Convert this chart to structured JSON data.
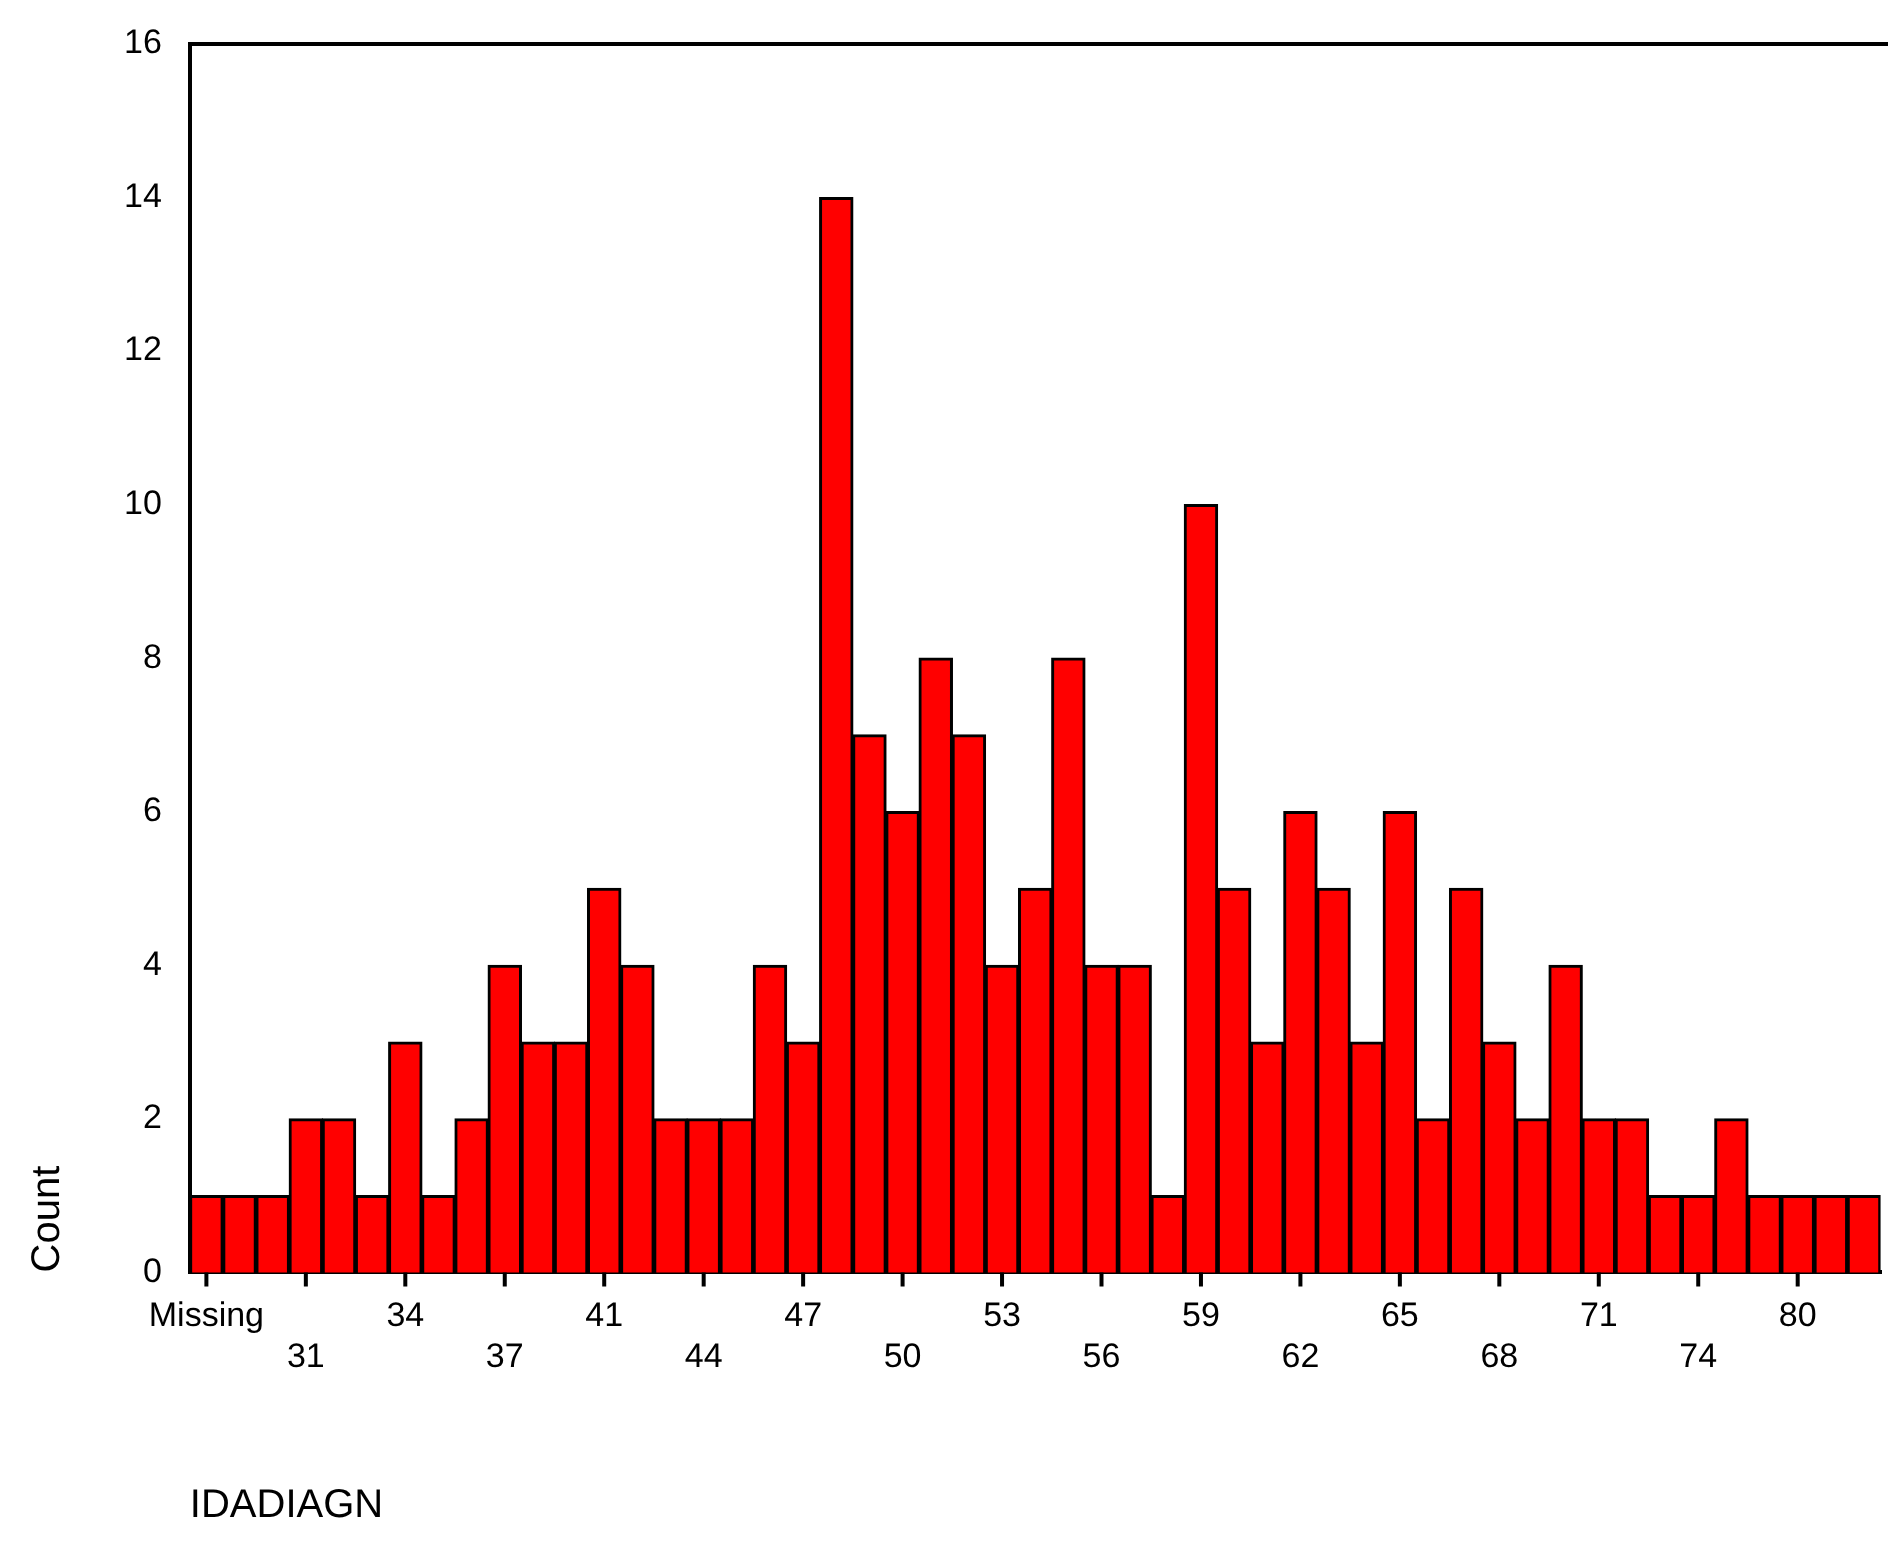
{
  "chart_data": {
    "type": "bar",
    "xlabel": "IDADIAGN",
    "ylabel": "Count",
    "categories": [
      "Missing",
      null,
      null,
      "31",
      null,
      null,
      "34",
      null,
      null,
      "37",
      null,
      null,
      "41",
      null,
      null,
      "44",
      null,
      null,
      "47",
      null,
      null,
      "50",
      null,
      null,
      "53",
      null,
      null,
      "56",
      null,
      null,
      "59",
      null,
      null,
      "62",
      null,
      null,
      "65",
      null,
      null,
      "68",
      null,
      null,
      "71",
      null,
      null,
      "74",
      null,
      null,
      "80",
      null,
      null
    ],
    "values": [
      1,
      1,
      1,
      2,
      2,
      1,
      3,
      1,
      2,
      4,
      3,
      3,
      5,
      4,
      2,
      2,
      2,
      4,
      3,
      14,
      7,
      6,
      8,
      7,
      4,
      5,
      8,
      4,
      4,
      1,
      10,
      5,
      3,
      6,
      5,
      3,
      6,
      2,
      5,
      3,
      2,
      4,
      2,
      2,
      1,
      1,
      2,
      1,
      1,
      1,
      1
    ],
    "color": "#ff0000",
    "ylim": [
      0,
      16
    ],
    "yticks": [
      0,
      2,
      4,
      6,
      8,
      10,
      12,
      14,
      16
    ],
    "grid": false,
    "legend": false
  }
}
